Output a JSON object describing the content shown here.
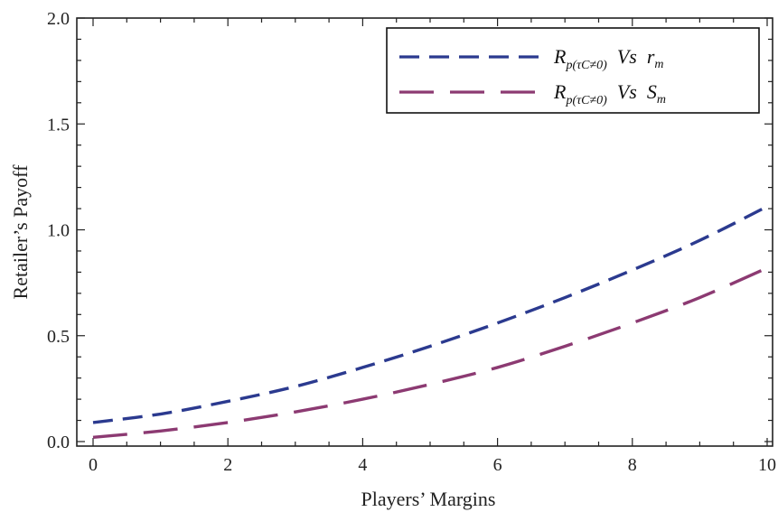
{
  "chart_data": {
    "type": "line",
    "xlabel": "Players’ Margins",
    "ylabel": "Retailer’s Payoff",
    "xlim": [
      0,
      10
    ],
    "ylim": [
      0,
      2.0
    ],
    "xticks": [
      0,
      2,
      4,
      6,
      8,
      10
    ],
    "yticks": [
      0.0,
      0.5,
      1.0,
      1.5,
      2.0
    ],
    "xtick_labels": [
      "0",
      "2",
      "4",
      "6",
      "8",
      "10"
    ],
    "ytick_labels": [
      "0.0",
      "0.5",
      "1.0",
      "1.5",
      "2.0"
    ],
    "grid": false,
    "legend_position": "top-right",
    "series": [
      {
        "name": "R p(τC≠0) Vs r m",
        "legend": {
          "main": "R",
          "sub": "p(τC≠0)",
          "mid": "Vs",
          "var": "r",
          "varsub": "m"
        },
        "color": "#2b3a8f",
        "dash": "short",
        "x": [
          0,
          1,
          2,
          3,
          4,
          5,
          6,
          7,
          8,
          9,
          10
        ],
        "y": [
          0.09,
          0.13,
          0.19,
          0.26,
          0.35,
          0.45,
          0.56,
          0.68,
          0.81,
          0.95,
          1.11
        ]
      },
      {
        "name": "R p(τC≠0) Vs S m",
        "legend": {
          "main": "R",
          "sub": "p(τC≠0)",
          "mid": "Vs",
          "var": "S",
          "varsub": "m"
        },
        "color": "#8c3a72",
        "dash": "long",
        "x": [
          0,
          1,
          2,
          3,
          4,
          5,
          6,
          7,
          8,
          9,
          10
        ],
        "y": [
          0.02,
          0.05,
          0.09,
          0.14,
          0.2,
          0.27,
          0.35,
          0.45,
          0.56,
          0.68,
          0.82
        ]
      }
    ]
  }
}
